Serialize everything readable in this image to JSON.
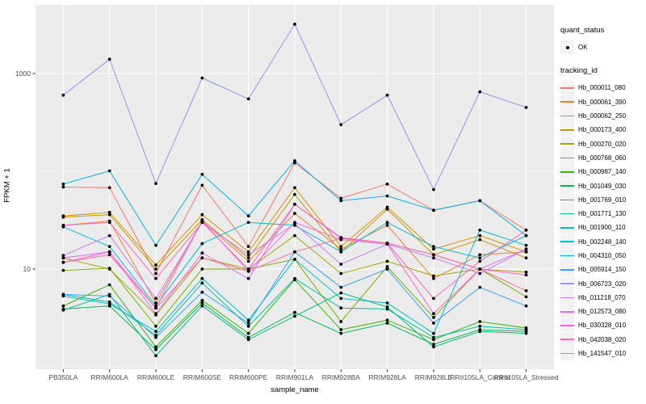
{
  "chart_data": {
    "type": "line",
    "title": "",
    "xlabel": "sample_name",
    "ylabel": "FPKM + 1",
    "y_scale": "log10",
    "y_ticks": [
      10,
      1000
    ],
    "y_minor_gridlines": [
      1,
      100
    ],
    "ylim": [
      0.93,
      5000
    ],
    "grid": true,
    "legend_position": "right",
    "point_marker": {
      "shape": "circle",
      "color": "#000000"
    },
    "categories": [
      "PB350LA",
      "RRIM600LA",
      "RRIM600LE",
      "RRIM600SE",
      "RRIM600PE",
      "RRIM901LA",
      "RRIM928BA",
      "RRIM928LA",
      "RRIM928LE",
      "RRII105LA_Control",
      "RRII105LA_Stressed"
    ],
    "series": [
      {
        "name": "Hb_000011_080",
        "color": "#F8766D",
        "values": [
          69,
          68,
          9,
          72,
          17,
          122,
          53,
          74,
          40,
          50,
          25
        ]
      },
      {
        "name": "Hb_000061_390",
        "color": "#EA8331",
        "values": [
          28,
          31,
          4.5,
          31,
          12,
          37,
          16,
          28,
          8,
          14,
          15
        ]
      },
      {
        "name": "Hb_000062_250",
        "color": "#D89000",
        "values": [
          35,
          38,
          11,
          36,
          15,
          68,
          17,
          43,
          16,
          22,
          15
        ]
      },
      {
        "name": "Hb_000173_400",
        "color": "#C09B00",
        "values": [
          34,
          36,
          10,
          32,
          13,
          58,
          15,
          41,
          14,
          20,
          13
        ]
      },
      {
        "name": "Hb_000270_020",
        "color": "#A3A500",
        "values": [
          13,
          10,
          3.4,
          13,
          10,
          22,
          9,
          12,
          8.5,
          10,
          9.3
        ]
      },
      {
        "name": "Hb_000768_060",
        "color": "#7CAE00",
        "values": [
          9.7,
          10.2,
          2.6,
          10,
          10,
          12.6,
          2.9,
          10.6,
          3.2,
          10,
          5.2
        ]
      },
      {
        "name": "Hb_000987_140",
        "color": "#39B600",
        "values": [
          4.2,
          6.9,
          1.6,
          4.8,
          2.2,
          7.8,
          2.4,
          3,
          1.9,
          2.9,
          2.5
        ]
      },
      {
        "name": "Hb_001049_030",
        "color": "#00BB4E",
        "values": [
          3.9,
          4.2,
          1.5,
          4.5,
          2,
          3.6,
          2.2,
          2.8,
          1.7,
          2.4,
          2.3
        ]
      },
      {
        "name": "Hb_001769_010",
        "color": "#00BF7D",
        "values": [
          3.8,
          5.5,
          1.3,
          4.2,
          1.9,
          3.3,
          5.7,
          4.1,
          1.6,
          2.3,
          2.2
        ]
      },
      {
        "name": "Hb_001771_130",
        "color": "#00C1A3",
        "values": [
          5.5,
          4.6,
          2.1,
          7.2,
          2.6,
          8,
          4,
          3.9,
          2,
          2.6,
          2.4
        ]
      },
      {
        "name": "Hb_001900_110",
        "color": "#00BFC4",
        "values": [
          5.3,
          4.4,
          2.3,
          8,
          3,
          12.6,
          5,
          4.5,
          2.2,
          25,
          17.5
        ]
      },
      {
        "name": "Hb_002248_140",
        "color": "#00BBDA",
        "values": [
          27,
          17,
          4.2,
          18.2,
          30,
          28,
          15,
          30,
          17,
          13,
          22
        ]
      },
      {
        "name": "Hb_004310_050",
        "color": "#00B0F6",
        "values": [
          74,
          101,
          17.5,
          93,
          35,
          128,
          50,
          56,
          40,
          50,
          22
        ]
      },
      {
        "name": "Hb_005914_150",
        "color": "#35A2FF",
        "values": [
          5.5,
          5.3,
          2,
          5.8,
          2.8,
          15,
          6.5,
          10,
          2.8,
          6.5,
          4.2
        ]
      },
      {
        "name": "Hb_006723_020",
        "color": "#9590FF",
        "values": [
          600,
          1400,
          75,
          900,
          550,
          3200,
          300,
          600,
          65,
          650,
          450
        ]
      },
      {
        "name": "Hb_011218_070",
        "color": "#C77CFF",
        "values": [
          13.8,
          22,
          5,
          30,
          14,
          29,
          11.2,
          18,
          13,
          9,
          16
        ]
      },
      {
        "name": "Hb_012573_080",
        "color": "#E76BF3",
        "values": [
          13,
          15,
          3.5,
          14.6,
          8,
          46,
          21,
          18.4,
          14,
          10,
          16
        ]
      },
      {
        "name": "Hb_030328_010",
        "color": "#FA62DB",
        "values": [
          11.7,
          15,
          4,
          31,
          9.5,
          30,
          20,
          18,
          3.5,
          10,
          8.7
        ]
      },
      {
        "name": "Hb_042038_020",
        "color": "#FF62BC",
        "values": [
          28,
          30,
          8,
          30,
          10,
          46,
          20.6,
          18.4,
          5,
          12,
          25
        ]
      },
      {
        "name": "Hb_141547_010",
        "color": "#FF6A98",
        "values": [
          11.7,
          14,
          4,
          13,
          9.5,
          15,
          20.6,
          18.4,
          14,
          10,
          6
        ]
      }
    ]
  },
  "legend": {
    "quant_status": {
      "title": "quant_status",
      "items": [
        {
          "label": "OK",
          "marker": "black-point"
        }
      ]
    },
    "tracking_id": {
      "title": "tracking_id"
    }
  },
  "style": {
    "panel_bg": "#EBEBEB",
    "grid_color": "#FFFFFF",
    "tick_color": "#333333",
    "tick_label_color": "#4D4D4D",
    "legend_key_bg": "#F2F2F2"
  }
}
